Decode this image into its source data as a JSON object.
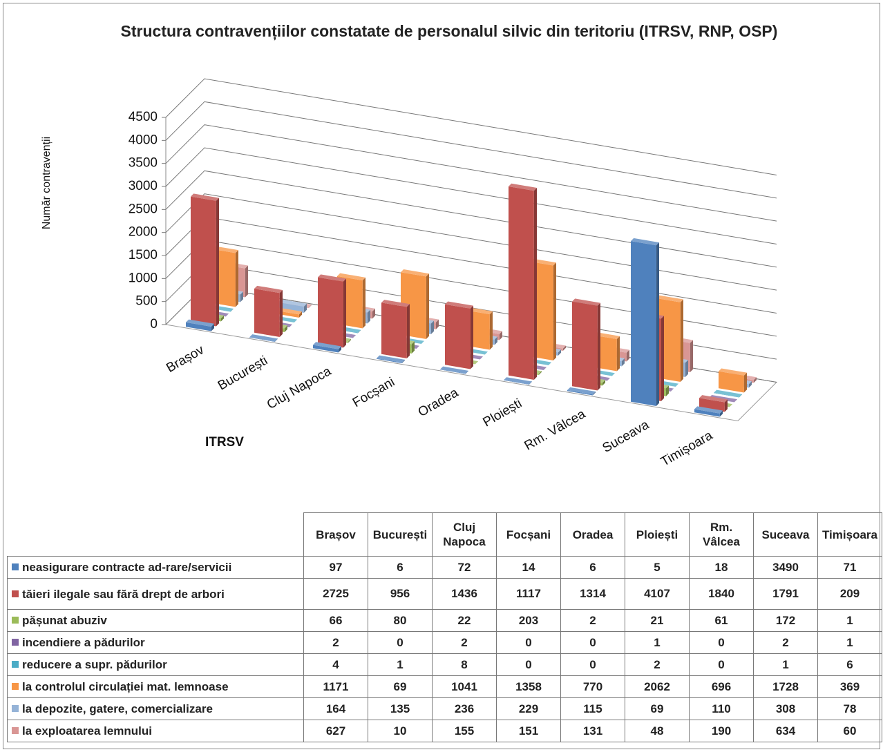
{
  "chart_data": {
    "type": "bar3d",
    "title": "Structura contravențiilor constatate de personalul silvic din teritoriu (ITRSV, RNP, OSP)",
    "x_label": "ITRSV",
    "y_label": "Număr contravenții",
    "categories": [
      "Brașov",
      "București",
      "Cluj Napoca",
      "Focșani",
      "Oradea",
      "Ploiești",
      "Rm. Vâlcea",
      "Suceava",
      "Timișoara"
    ],
    "ylim": [
      0,
      4500
    ],
    "yticks": [
      0,
      500,
      1000,
      1500,
      2000,
      2500,
      3000,
      3500,
      4000,
      4500
    ],
    "grid": true,
    "legend": "table",
    "series": [
      {
        "name": "neasigurare contracte ad-rare/servicii",
        "color": "#4f81bd",
        "values": [
          97,
          6,
          72,
          14,
          6,
          5,
          18,
          3490,
          71
        ]
      },
      {
        "name": "tăieri ilegale sau fără drept de arbori",
        "color": "#c0504d",
        "values": [
          2725,
          956,
          1436,
          1117,
          1314,
          4107,
          1840,
          1791,
          209
        ]
      },
      {
        "name": "pășunat abuziv",
        "color": "#9bbb59",
        "values": [
          66,
          80,
          22,
          203,
          2,
          21,
          61,
          172,
          1
        ]
      },
      {
        "name": "incendiere a pădurilor",
        "color": "#8064a2",
        "values": [
          2,
          0,
          2,
          0,
          0,
          1,
          0,
          2,
          1
        ]
      },
      {
        "name": "reducere a supr. pădurilor",
        "color": "#4bacc6",
        "values": [
          4,
          1,
          8,
          0,
          0,
          2,
          0,
          1,
          6
        ]
      },
      {
        "name": "la controlul circulației mat. lemnoase",
        "color": "#f79646",
        "values": [
          1171,
          69,
          1041,
          1358,
          770,
          2062,
          696,
          1728,
          369
        ]
      },
      {
        "name": "la depozite, gatere, comercializare",
        "color": "#95b3d7",
        "values": [
          164,
          135,
          236,
          229,
          115,
          69,
          110,
          308,
          78
        ]
      },
      {
        "name": "la exploatarea lemnului",
        "color": "#d99694",
        "values": [
          627,
          10,
          155,
          151,
          131,
          48,
          190,
          634,
          60
        ]
      }
    ]
  }
}
